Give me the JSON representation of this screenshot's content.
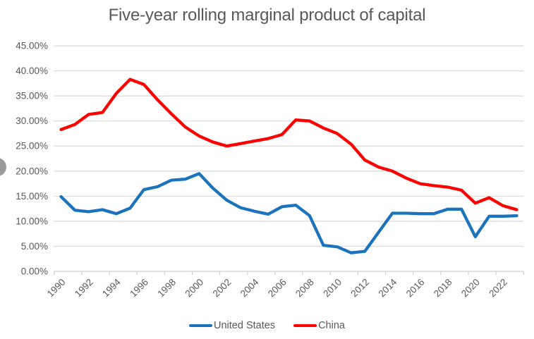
{
  "chart_data": {
    "type": "line",
    "title": "Five-year rolling marginal product of capital",
    "x": [
      1990,
      1991,
      1992,
      1993,
      1994,
      1995,
      1996,
      1997,
      1998,
      1999,
      2000,
      2001,
      2002,
      2003,
      2004,
      2005,
      2006,
      2007,
      2008,
      2009,
      2010,
      2011,
      2012,
      2013,
      2014,
      2015,
      2016,
      2017,
      2018,
      2019,
      2020,
      2021,
      2022,
      2023
    ],
    "x_tick_labels": [
      "1990",
      "1992",
      "1994",
      "1996",
      "1998",
      "2000",
      "2002",
      "2004",
      "2006",
      "2008",
      "2010",
      "2012",
      "2014",
      "2016",
      "2018",
      "2020",
      "2022"
    ],
    "y_axis": {
      "min": 0,
      "max": 45,
      "step": 5,
      "format": "percent_2dp"
    },
    "y_tick_labels": [
      "0.00%",
      "5.00%",
      "10.00%",
      "15.00%",
      "20.00%",
      "25.00%",
      "30.00%",
      "35.00%",
      "40.00%",
      "45.00%"
    ],
    "grid": true,
    "legend_position": "bottom",
    "series": [
      {
        "name": "United States",
        "color": "#1B73BE",
        "values": [
          14.9,
          12.2,
          11.9,
          12.3,
          11.5,
          12.6,
          16.3,
          16.9,
          18.2,
          18.4,
          19.5,
          16.6,
          14.2,
          12.7,
          12.0,
          11.4,
          12.9,
          13.2,
          11.1,
          5.2,
          4.9,
          3.7,
          4.0,
          7.8,
          11.6,
          11.6,
          11.5,
          11.5,
          12.4,
          12.4,
          6.9,
          11.0,
          11.0,
          11.1
        ]
      },
      {
        "name": "China",
        "color": "#FE0000",
        "values": [
          28.3,
          29.3,
          31.3,
          31.7,
          35.5,
          38.3,
          37.3,
          34.2,
          31.4,
          28.8,
          27.0,
          25.8,
          25.0,
          25.5,
          26.0,
          26.5,
          27.3,
          30.2,
          30.0,
          28.6,
          27.5,
          25.4,
          22.2,
          20.8,
          20.0,
          18.6,
          17.5,
          17.1,
          16.8,
          16.2,
          13.6,
          14.7,
          13.1,
          12.3
        ]
      }
    ],
    "style": {
      "grid_color": "#D9D9D9",
      "axis_color": "#D0D0D0",
      "text_color": "#595959"
    }
  }
}
